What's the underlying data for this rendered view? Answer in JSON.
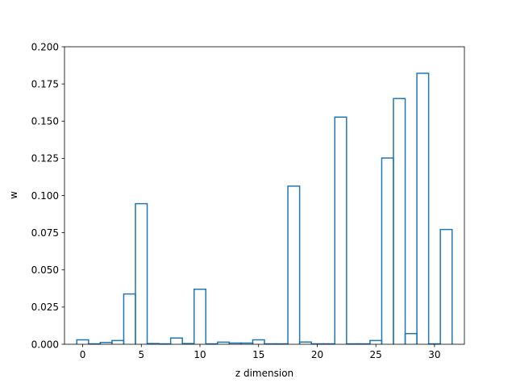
{
  "chart_data": {
    "type": "bar",
    "style": "step-outline",
    "title": "",
    "xlabel": "z dimension",
    "ylabel": "w",
    "xlim": [
      -1.55,
      32.55
    ],
    "ylim": [
      0,
      0.2
    ],
    "grid": false,
    "legend": "none",
    "x_ticks": [
      0,
      5,
      10,
      15,
      20,
      25,
      30
    ],
    "x_tick_labels": [
      "0",
      "5",
      "10",
      "15",
      "20",
      "25",
      "30"
    ],
    "y_ticks": [
      0,
      0.025,
      0.05,
      0.075,
      0.1,
      0.125,
      0.15,
      0.175,
      0.2
    ],
    "y_tick_labels": [
      "0.000",
      "0.025",
      "0.050",
      "0.075",
      "0.100",
      "0.125",
      "0.150",
      "0.175",
      "0.200"
    ],
    "x": [
      0,
      1,
      2,
      3,
      4,
      5,
      6,
      7,
      8,
      9,
      10,
      11,
      12,
      13,
      14,
      15,
      16,
      17,
      18,
      19,
      20,
      21,
      22,
      23,
      24,
      25,
      26,
      27,
      28,
      29,
      30,
      31
    ],
    "values": [
      0.003,
      0.0003,
      0.0012,
      0.0025,
      0.0338,
      0.0945,
      0.0005,
      0.0003,
      0.0042,
      0.0005,
      0.037,
      0.0003,
      0.0014,
      0.0008,
      0.0008,
      0.003,
      0.0003,
      0.0003,
      0.1063,
      0.0015,
      0.0003,
      0.0003,
      0.1527,
      0.0003,
      0.0003,
      0.0025,
      0.1252,
      0.1652,
      0.0072,
      0.1822,
      0.0003,
      0.0772
    ],
    "colors": {
      "line": "#1f77b4",
      "axes": "#000000",
      "background": "#ffffff"
    }
  }
}
